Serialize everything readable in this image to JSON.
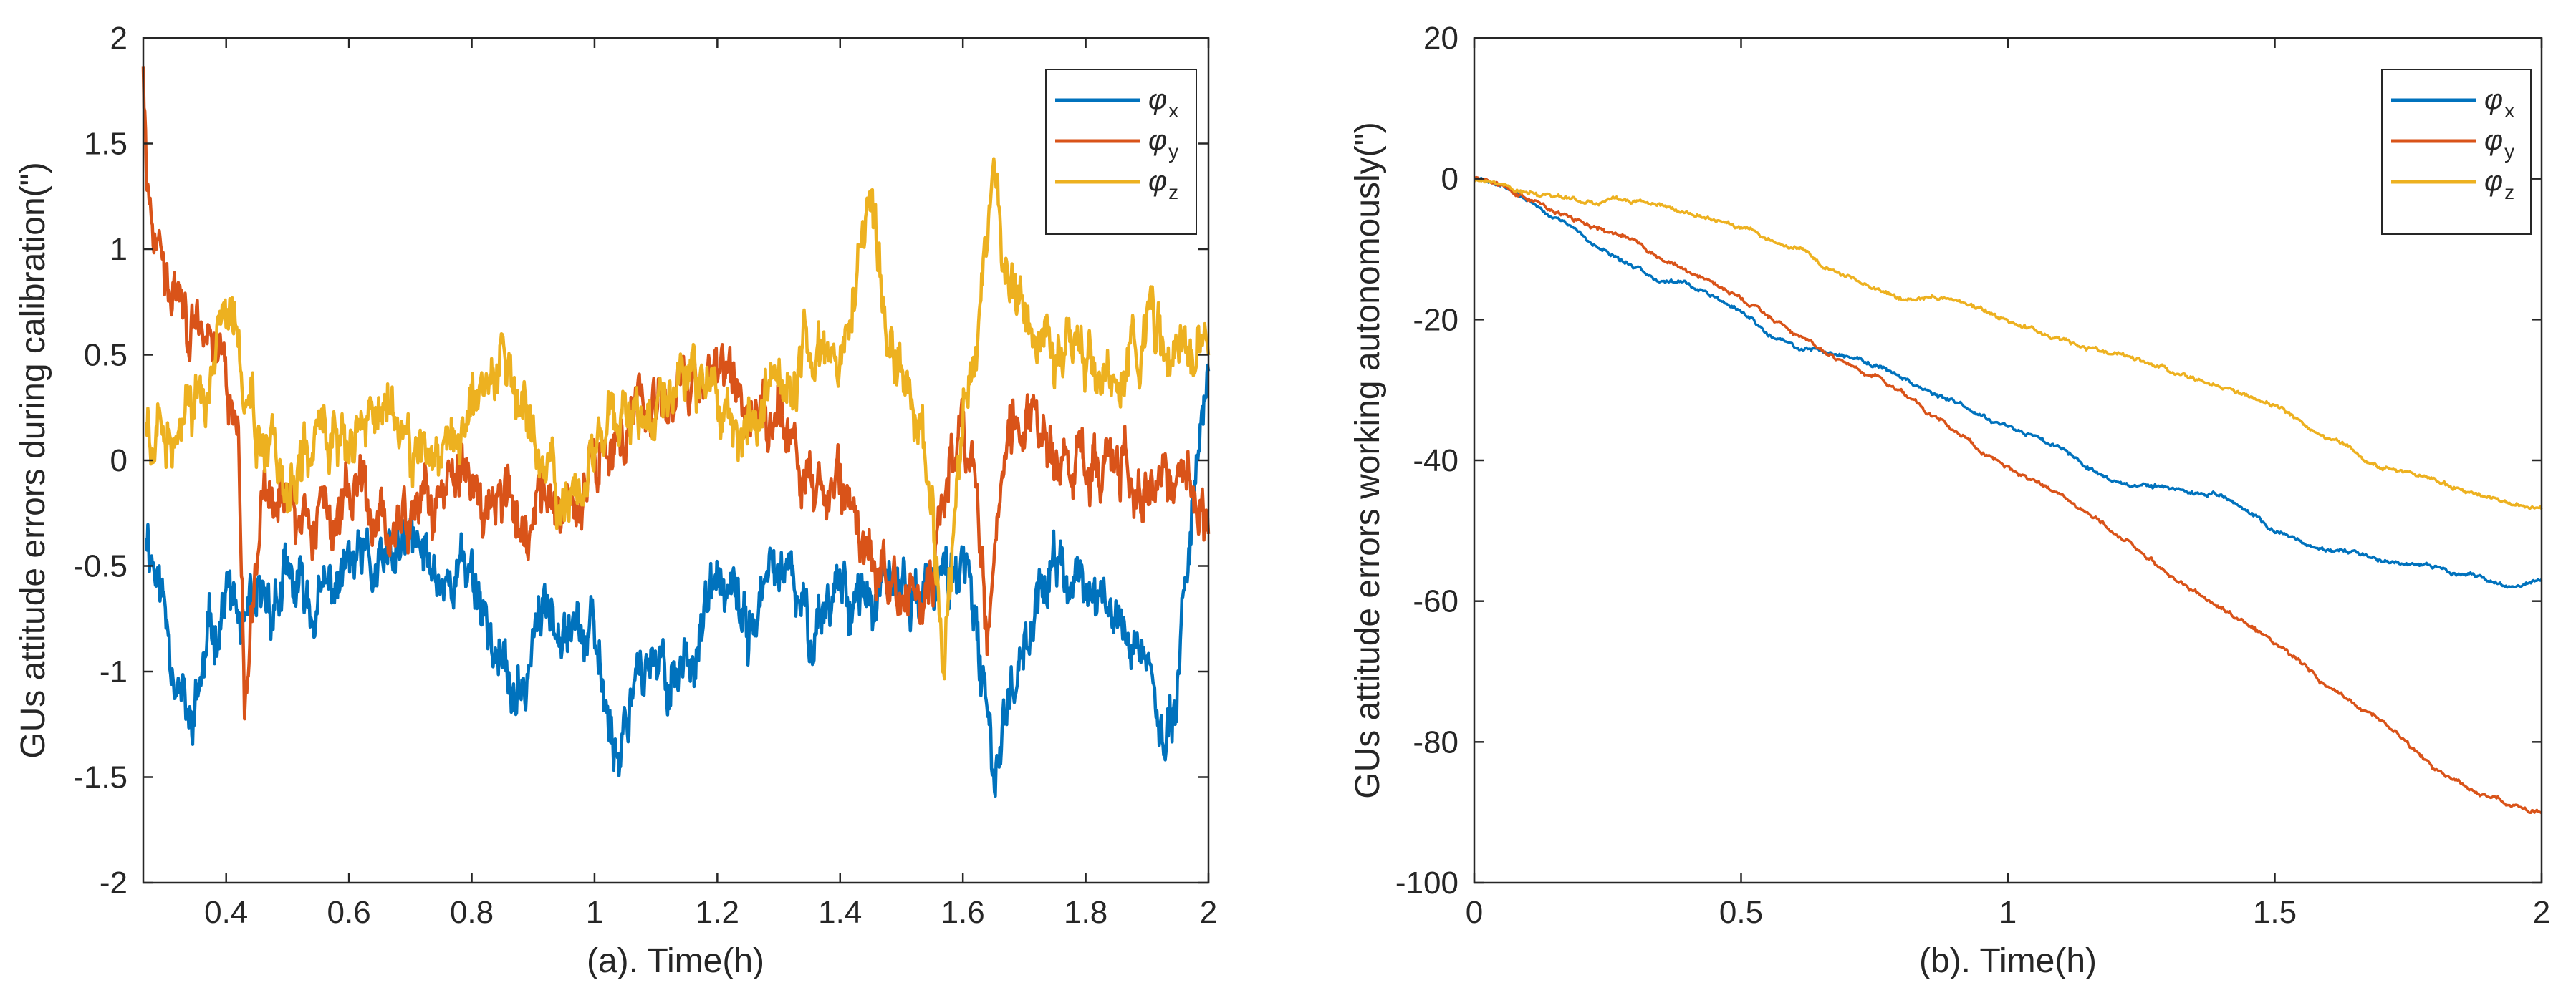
{
  "chart_data": [
    {
      "type": "line",
      "id": "a",
      "xlabel": "(a). Time(h)",
      "ylabel": "GUs attitude errors during calibration(\")",
      "xlim": [
        0.265,
        2
      ],
      "ylim": [
        -2,
        2
      ],
      "xticks": [
        0.4,
        0.6,
        0.8,
        1,
        1.2,
        1.4,
        1.6,
        1.8,
        2
      ],
      "xtick_labels": [
        "0.4",
        "0.6",
        "0.8",
        "1",
        "1.2",
        "1.4",
        "1.6",
        "1.8",
        "2"
      ],
      "yticks": [
        -2,
        -1.5,
        -1,
        -0.5,
        0,
        0.5,
        1,
        1.5,
        2
      ],
      "ytick_labels": [
        "-2",
        "-1.5",
        "-1",
        "-0.5",
        "0",
        "0.5",
        "1",
        "1.5",
        "2"
      ],
      "grid": false,
      "legend_position": "top-right",
      "series": [
        {
          "name": "φx",
          "symbol": "φ",
          "sub": "x",
          "color": "#0072BD",
          "x": [
            0.27,
            0.3,
            0.34,
            0.37,
            0.4,
            0.43,
            0.46,
            0.5,
            0.55,
            0.6,
            0.65,
            0.7,
            0.75,
            0.8,
            0.85,
            0.88,
            0.9,
            0.95,
            1.0,
            1.04,
            1.07,
            1.1,
            1.15,
            1.2,
            1.25,
            1.3,
            1.35,
            1.4,
            1.45,
            1.5,
            1.55,
            1.6,
            1.65,
            1.7,
            1.75,
            1.8,
            1.85,
            1.9,
            1.93,
            1.96,
            2.0
          ],
          "y": [
            -0.3,
            -0.7,
            -1.3,
            -0.9,
            -0.6,
            -0.85,
            -0.7,
            -0.6,
            -0.7,
            -0.5,
            -0.55,
            -0.4,
            -0.55,
            -0.5,
            -1.0,
            -1.2,
            -0.8,
            -0.65,
            -0.9,
            -1.4,
            -0.9,
            -1.05,
            -0.95,
            -0.6,
            -0.8,
            -0.5,
            -0.8,
            -0.55,
            -0.7,
            -0.6,
            -0.65,
            -0.45,
            -1.45,
            -0.8,
            -0.5,
            -0.6,
            -0.75,
            -0.9,
            -1.5,
            -0.6,
            0.5
          ]
        },
        {
          "name": "φy",
          "symbol": "φ",
          "sub": "y",
          "color": "#D95319",
          "x": [
            0.265,
            0.27,
            0.29,
            0.31,
            0.34,
            0.37,
            0.4,
            0.42,
            0.43,
            0.46,
            0.5,
            0.55,
            0.6,
            0.65,
            0.7,
            0.75,
            0.8,
            0.85,
            0.9,
            0.95,
            1.0,
            1.05,
            1.1,
            1.15,
            1.2,
            1.25,
            1.3,
            1.35,
            1.4,
            1.45,
            1.5,
            1.55,
            1.58,
            1.6,
            1.62,
            1.64,
            1.67,
            1.7,
            1.75,
            1.8,
            1.85,
            1.9,
            1.95,
            2.0
          ],
          "y": [
            1.8,
            1.45,
            1.0,
            0.8,
            0.65,
            0.55,
            0.45,
            0.25,
            -1.2,
            -0.15,
            -0.2,
            -0.25,
            -0.2,
            -0.3,
            -0.35,
            -0.15,
            -0.1,
            -0.15,
            -0.3,
            -0.2,
            -0.05,
            0.15,
            0.25,
            0.35,
            0.4,
            0.3,
            0.2,
            -0.1,
            -0.05,
            -0.5,
            -0.65,
            -0.55,
            0.0,
            0.1,
            0.0,
            -0.95,
            0.1,
            0.2,
            0.1,
            -0.05,
            0.0,
            -0.1,
            0.0,
            -0.35
          ]
        },
        {
          "name": "φz",
          "symbol": "φ",
          "sub": "z",
          "color": "#EDB120",
          "x": [
            0.27,
            0.3,
            0.34,
            0.38,
            0.41,
            0.45,
            0.5,
            0.55,
            0.6,
            0.65,
            0.7,
            0.75,
            0.8,
            0.85,
            0.9,
            0.95,
            1.0,
            1.05,
            1.1,
            1.15,
            1.2,
            1.25,
            1.3,
            1.35,
            1.4,
            1.43,
            1.45,
            1.48,
            1.5,
            1.53,
            1.55,
            1.57,
            1.6,
            1.63,
            1.65,
            1.67,
            1.7,
            1.75,
            1.8,
            1.85,
            1.9,
            1.95,
            2.0
          ],
          "y": [
            0.1,
            0.1,
            0.2,
            0.4,
            0.65,
            0.1,
            -0.1,
            0.1,
            0.05,
            0.2,
            0.05,
            0.0,
            0.25,
            0.5,
            0.1,
            -0.25,
            0.05,
            0.3,
            0.2,
            0.45,
            0.3,
            0.15,
            0.3,
            0.45,
            0.5,
            1.0,
            1.2,
            0.6,
            0.4,
            0.15,
            -0.2,
            -0.95,
            0.2,
            0.8,
            1.3,
            0.85,
            0.6,
            0.55,
            0.5,
            0.35,
            0.6,
            0.5,
            0.45
          ]
        }
      ]
    },
    {
      "type": "line",
      "id": "b",
      "xlabel": "(b). Time(h)",
      "ylabel": "GUs attitude errors working autonomously(\")",
      "xlim": [
        0,
        2
      ],
      "ylim": [
        -100,
        20
      ],
      "xticks": [
        0,
        0.5,
        1,
        1.5,
        2
      ],
      "xtick_labels": [
        "0",
        "0.5",
        "1",
        "1.5",
        "2"
      ],
      "yticks": [
        -100,
        -80,
        -60,
        -40,
        -20,
        0,
        20
      ],
      "ytick_labels": [
        "-100",
        "-80",
        "-60",
        "-40",
        "-20",
        "0",
        "20"
      ],
      "grid": false,
      "legend_position": "top-right",
      "series": [
        {
          "name": "φx",
          "symbol": "φ",
          "sub": "x",
          "color": "#0072BD",
          "x": [
            0,
            0.05,
            0.1,
            0.2,
            0.3,
            0.4,
            0.5,
            0.55,
            0.6,
            0.7,
            0.8,
            0.9,
            1.0,
            1.1,
            1.2,
            1.3,
            1.4,
            1.5,
            1.6,
            1.7,
            1.8,
            1.9,
            1.95,
            2.0
          ],
          "y": [
            0,
            -1,
            -3,
            -8,
            -13,
            -15,
            -19,
            -22,
            -24,
            -25,
            -28,
            -32,
            -35,
            -38,
            -43,
            -44,
            -45,
            -50,
            -53,
            -54,
            -55,
            -57,
            -58,
            -57
          ]
        },
        {
          "name": "φy",
          "symbol": "φ",
          "sub": "y",
          "color": "#D95319",
          "x": [
            0,
            0.05,
            0.1,
            0.2,
            0.3,
            0.4,
            0.5,
            0.6,
            0.7,
            0.8,
            0.9,
            1.0,
            1.1,
            1.2,
            1.3,
            1.4,
            1.5,
            1.6,
            1.7,
            1.8,
            1.9,
            2.0
          ],
          "y": [
            0,
            -1,
            -3,
            -6,
            -9,
            -13,
            -17,
            -22,
            -26,
            -30,
            -36,
            -41,
            -45,
            -50,
            -56,
            -61,
            -66,
            -72,
            -77,
            -84,
            -88,
            -90
          ]
        },
        {
          "name": "φz",
          "symbol": "φ",
          "sub": "z",
          "color": "#EDB120",
          "x": [
            0,
            0.05,
            0.1,
            0.15,
            0.2,
            0.3,
            0.4,
            0.5,
            0.6,
            0.7,
            0.8,
            0.9,
            1.0,
            1.1,
            1.2,
            1.3,
            1.4,
            1.5,
            1.6,
            1.7,
            1.8,
            1.9,
            2.0
          ],
          "y": [
            0,
            -1,
            -2,
            -2,
            -3,
            -3,
            -5,
            -7,
            -10,
            -14,
            -17,
            -17,
            -20,
            -23,
            -25,
            -27,
            -30,
            -32,
            -37,
            -41,
            -43,
            -45,
            -47
          ]
        }
      ]
    }
  ]
}
